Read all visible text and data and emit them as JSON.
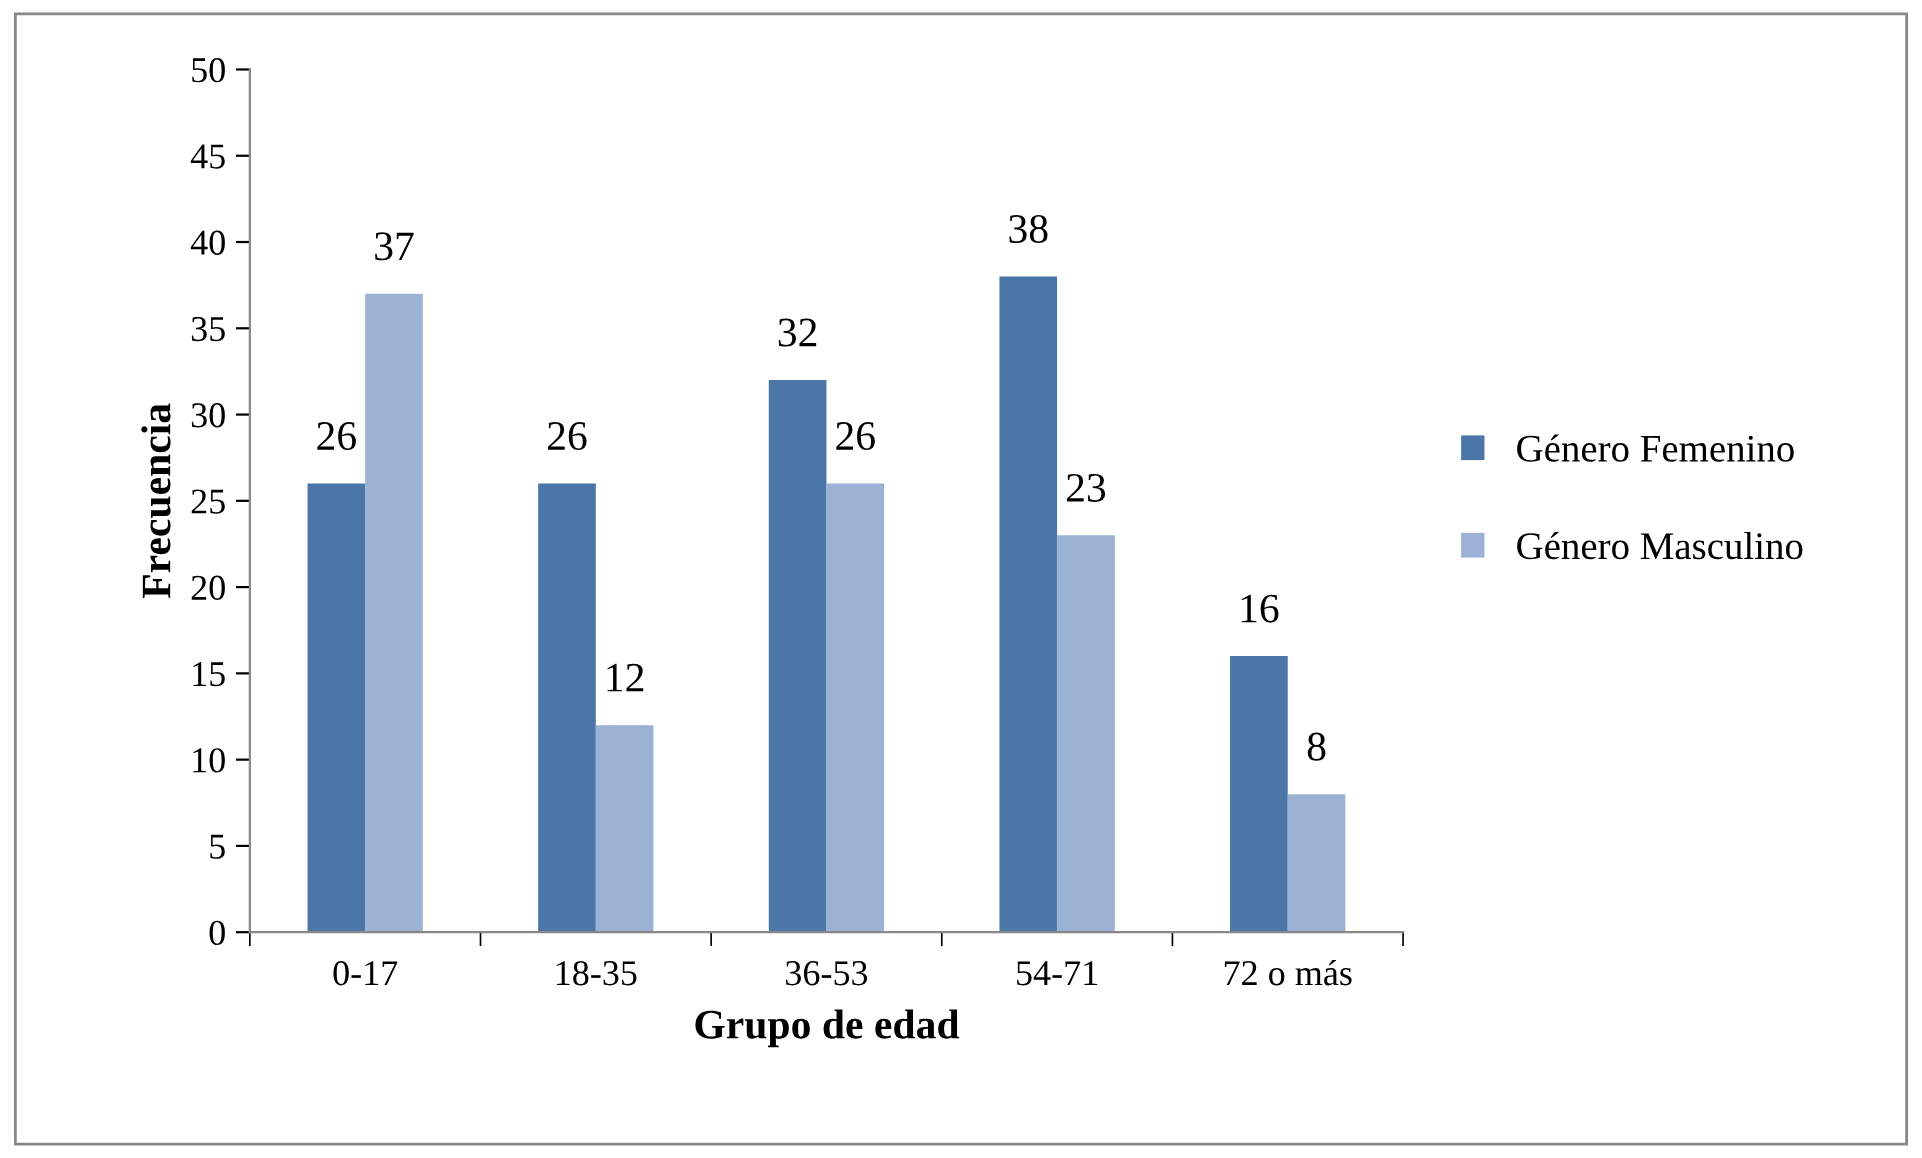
{
  "chart_data": {
    "type": "bar",
    "xlabel": "Grupo de edad",
    "ylabel": "Frecuencia",
    "categories": [
      "0-17",
      "18-35",
      "36-53",
      "54-71",
      "72 o más"
    ],
    "series": [
      {
        "name": "Género Femenino",
        "color": "#4a76a8",
        "values": [
          26,
          26,
          32,
          38,
          16
        ]
      },
      {
        "name": "Género Masculino",
        "color": "#9cb2d5",
        "values": [
          37,
          12,
          26,
          23,
          8
        ]
      }
    ],
    "ylim": [
      0,
      50
    ],
    "yticks": [
      0,
      5,
      10,
      15,
      20,
      25,
      30,
      35,
      40,
      45,
      50
    ],
    "grid": false,
    "legend": "right",
    "data_labels": true
  }
}
